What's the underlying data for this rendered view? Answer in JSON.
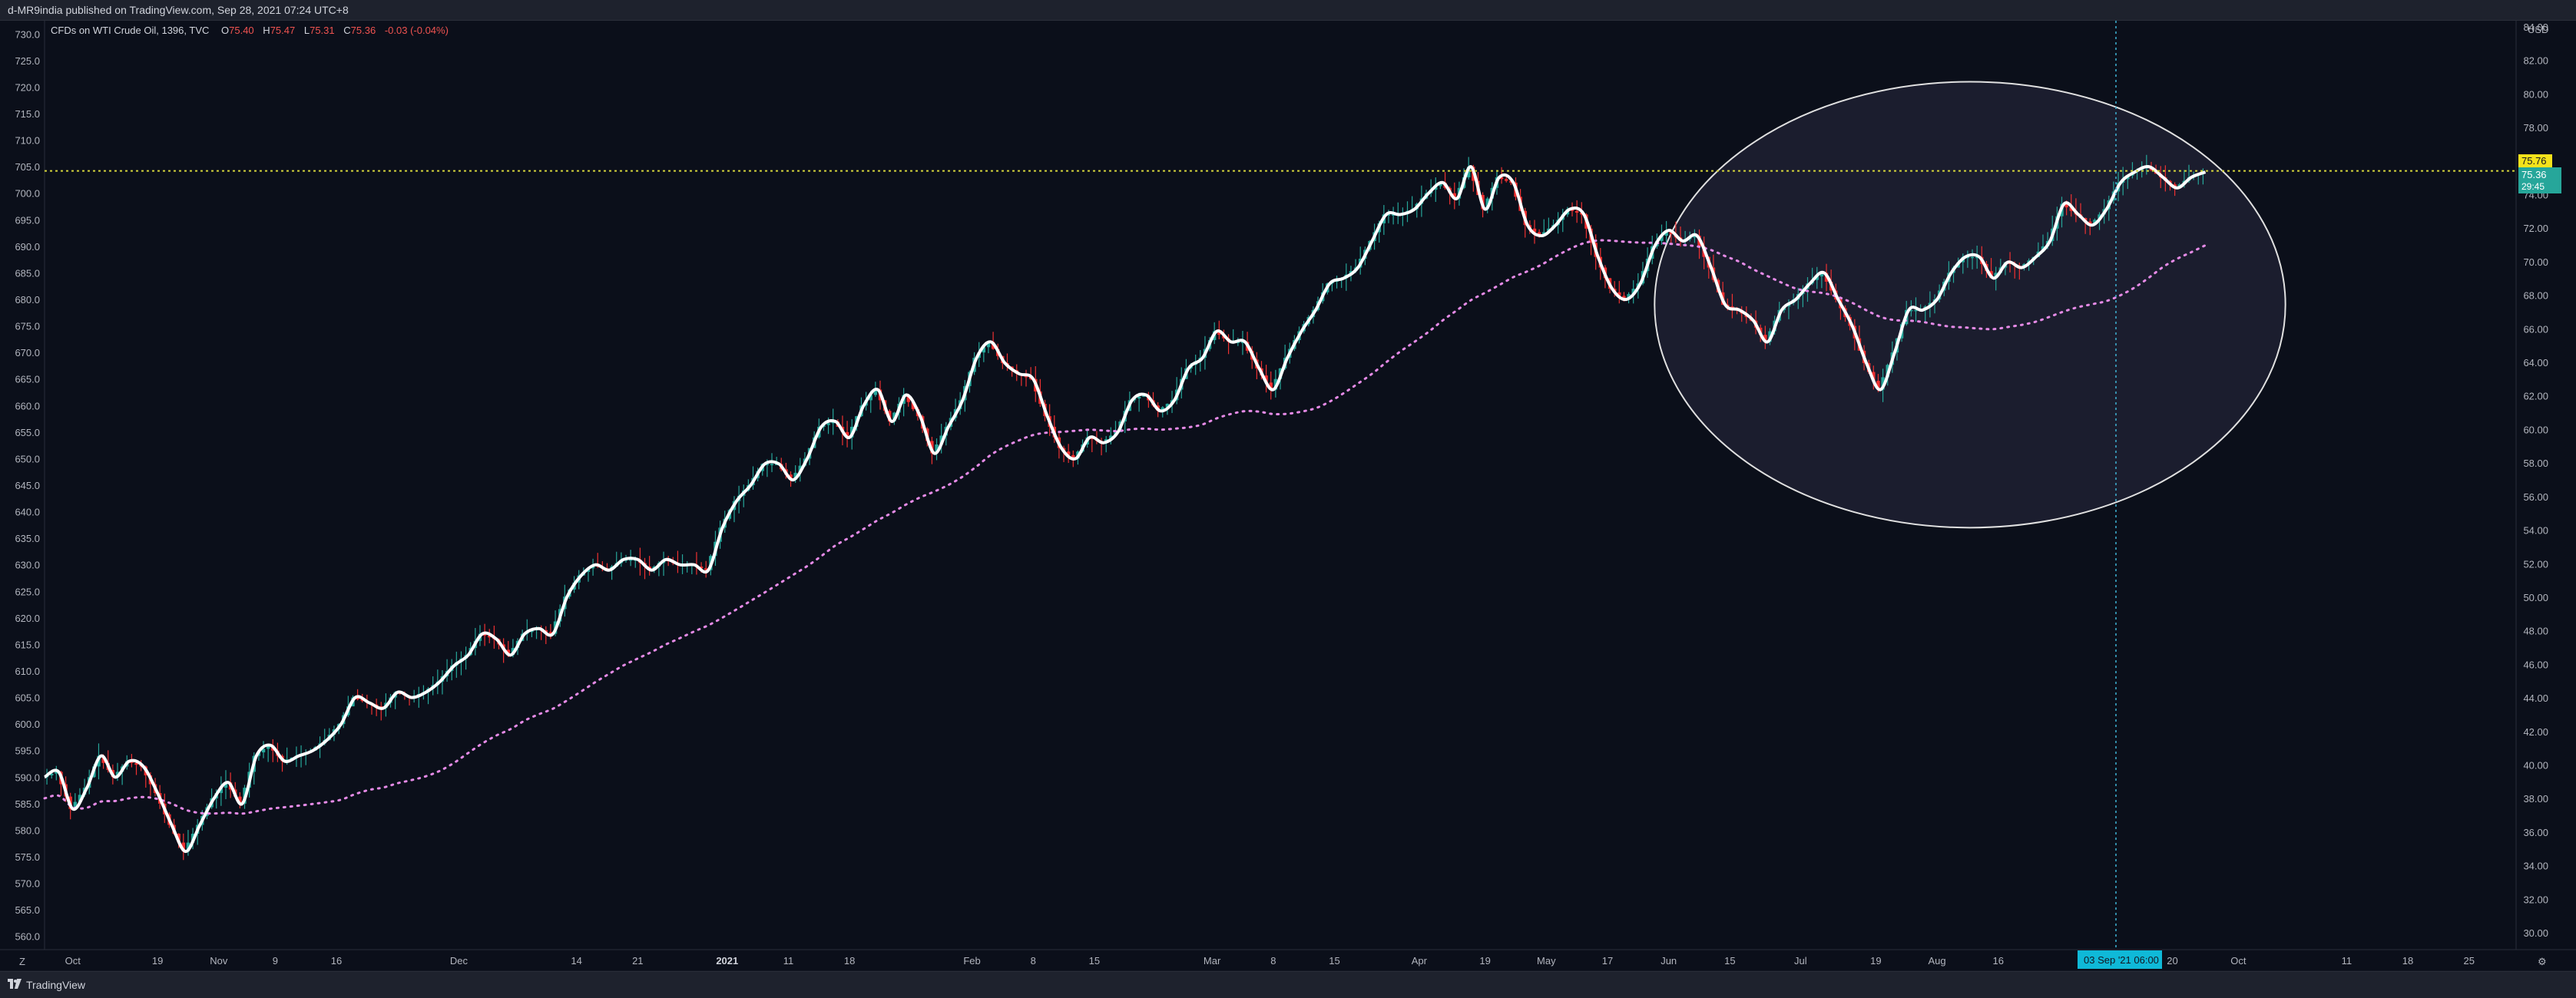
{
  "header": {
    "text": "d-MR9india published on TradingView.com, Sep 28, 2021 07:24 UTC+8"
  },
  "footer": {
    "brand": "TradingView"
  },
  "symbol_info": {
    "name": "CFDs on WTI Crude Oil, 1396, TVC",
    "o_label": "O",
    "o_value": "75.40",
    "h_label": "H",
    "h_value": "75.47",
    "l_label": "L",
    "l_value": "75.31",
    "c_label": "C",
    "c_value": "75.36",
    "change": "-0.03 (-0.04%)"
  },
  "price_tags": {
    "yellow": "75.76",
    "teal": "75.36",
    "teal_sub": "29:45"
  },
  "crosshair_label": "03 Sep '21  06:00",
  "colors": {
    "background": "#0b0f1a",
    "up": "#26a69a",
    "down": "#ef3131",
    "smooth_line": "#ffffff",
    "ma_line": "#e58ae6",
    "yellow_level": "#d4d43a",
    "crosshair": "#3fb3d4",
    "ellipse_fill": "#3a3a55",
    "ellipse_stroke": "#e0e0e0"
  },
  "chart_data": {
    "type": "line",
    "left_axis": {
      "min": 557.5,
      "max": 732.5,
      "ticks": [
        "560.0",
        "565.0",
        "570.0",
        "575.0",
        "580.0",
        "585.0",
        "590.0",
        "595.0",
        "600.0",
        "605.0",
        "610.0",
        "615.0",
        "620.0",
        "625.0",
        "630.0",
        "635.0",
        "640.0",
        "645.0",
        "650.0",
        "655.0",
        "660.0",
        "665.0",
        "670.0",
        "675.0",
        "680.0",
        "685.0",
        "690.0",
        "695.0",
        "700.0",
        "705.0",
        "710.0",
        "715.0",
        "720.0",
        "725.0",
        "730.0"
      ]
    },
    "right_axis": {
      "unit": "USD",
      "ticks": [
        "30.00",
        "32.00",
        "34.00",
        "36.00",
        "38.00",
        "40.00",
        "42.00",
        "44.00",
        "46.00",
        "48.00",
        "50.00",
        "52.00",
        "54.00",
        "56.00",
        "58.00",
        "60.00",
        "62.00",
        "64.00",
        "66.00",
        "68.00",
        "70.00",
        "72.00",
        "74.00",
        "76.00",
        "78.00",
        "80.00",
        "82.00",
        "84.00"
      ]
    },
    "x_axis": {
      "labels": [
        {
          "t": 6,
          "text": "Oct"
        },
        {
          "t": 24,
          "text": "19"
        },
        {
          "t": 37,
          "text": "Nov"
        },
        {
          "t": 49,
          "text": "9"
        },
        {
          "t": 62,
          "text": "16"
        },
        {
          "t": 88,
          "text": "Dec"
        },
        {
          "t": 113,
          "text": "14"
        },
        {
          "t": 126,
          "text": "21"
        },
        {
          "t": 145,
          "text": "2021",
          "bold": true
        },
        {
          "t": 158,
          "text": "11"
        },
        {
          "t": 171,
          "text": "18"
        },
        {
          "t": 197,
          "text": "Feb"
        },
        {
          "t": 210,
          "text": "8"
        },
        {
          "t": 223,
          "text": "15"
        },
        {
          "t": 248,
          "text": "Mar"
        },
        {
          "t": 261,
          "text": "8"
        },
        {
          "t": 274,
          "text": "15"
        },
        {
          "t": 292,
          "text": "Apr"
        },
        {
          "t": 306,
          "text": "19"
        },
        {
          "t": 319,
          "text": "May"
        },
        {
          "t": 332,
          "text": "17"
        },
        {
          "t": 345,
          "text": "Jun"
        },
        {
          "t": 358,
          "text": "15"
        },
        {
          "t": 373,
          "text": "Jul"
        },
        {
          "t": 389,
          "text": "19"
        },
        {
          "t": 402,
          "text": "Aug"
        },
        {
          "t": 415,
          "text": "16"
        },
        {
          "t": 452,
          "text": "20"
        },
        {
          "t": 466,
          "text": "Oct"
        },
        {
          "t": 489,
          "text": "11"
        },
        {
          "t": 502,
          "text": "18"
        },
        {
          "t": 515,
          "text": "25"
        }
      ]
    },
    "series": [
      {
        "values_t": [
          0,
          3,
          6,
          9,
          12,
          15,
          18,
          21,
          24,
          27,
          30,
          33,
          36,
          39,
          42,
          45,
          48,
          51,
          54,
          57,
          60,
          63,
          66,
          69,
          72,
          75,
          78,
          81,
          84,
          87,
          90,
          93,
          96,
          99,
          102,
          105,
          108,
          111,
          114,
          117,
          120,
          123,
          126,
          129,
          132,
          135,
          138,
          141,
          144,
          147,
          150,
          153,
          156,
          159,
          162,
          165,
          168,
          171,
          174,
          177,
          180,
          183,
          186,
          189,
          192,
          195,
          198,
          201,
          204,
          207,
          210,
          213,
          216,
          219,
          222,
          225,
          228,
          231,
          234,
          237,
          240,
          243,
          246,
          249,
          252,
          255,
          258,
          261,
          264,
          267,
          270,
          273,
          276,
          279,
          282,
          285,
          288,
          291,
          294,
          297,
          300,
          303,
          306,
          309,
          312,
          315,
          318,
          321,
          324,
          327,
          330,
          333,
          336,
          339,
          342,
          345,
          348,
          351,
          354,
          357,
          360,
          363,
          366,
          369,
          372,
          375,
          378,
          381,
          384,
          387,
          390,
          393,
          396,
          399,
          402,
          405,
          408,
          411,
          414,
          417,
          420,
          423,
          426,
          429,
          432,
          435,
          438,
          441,
          444,
          447,
          450,
          453,
          456,
          459
        ],
        "values": [
          590,
          591,
          584,
          588,
          594,
          590,
          593,
          592,
          587,
          581,
          576,
          581,
          586,
          589,
          585,
          594,
          596,
          593,
          594,
          595,
          597,
          600,
          605,
          604,
          603,
          606,
          605,
          606,
          608,
          611,
          613,
          617,
          616,
          613,
          617,
          618,
          617,
          624,
          628,
          630,
          629,
          631,
          631,
          629,
          631,
          630,
          630,
          629,
          637,
          642,
          645,
          649,
          649,
          646,
          650,
          656,
          657,
          654,
          660,
          663,
          657,
          662,
          658,
          651,
          656,
          661,
          669,
          672,
          668,
          666,
          665,
          658,
          652,
          650,
          654,
          653,
          655,
          661,
          662,
          659,
          661,
          667,
          669,
          674,
          672,
          672,
          667,
          663,
          669,
          674,
          678,
          683,
          684,
          686,
          691,
          696,
          696,
          697,
          700,
          702,
          699,
          705,
          697,
          703,
          702,
          694,
          692,
          694,
          697,
          696,
          688,
          682,
          680,
          683,
          690,
          693,
          691,
          692,
          686,
          679,
          678,
          676,
          672,
          678,
          680,
          683,
          685,
          680,
          675,
          668,
          663,
          670,
          678,
          678,
          680,
          685,
          688,
          688,
          684,
          687,
          686,
          688,
          691,
          698,
          696,
          694,
          697,
          702,
          704,
          705,
          703,
          701,
          703,
          704
        ]
      }
    ]
  }
}
